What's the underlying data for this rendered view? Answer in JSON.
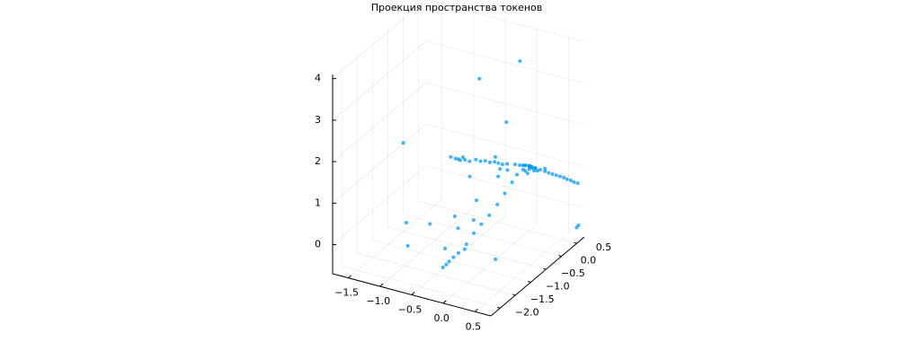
{
  "chart_data": {
    "type": "scatter",
    "title": "Проекция пространства токенов",
    "xlabel": "",
    "ylabel": "",
    "zlabel": "",
    "grid": true,
    "legend": "none",
    "marker_color": "#009af9",
    "x_ticks": [
      -1.5,
      -1.0,
      -0.5,
      0.0,
      0.5
    ],
    "x_tick_labels": [
      "−1.5",
      "−1.0",
      "−0.5",
      "0.0",
      "0.5"
    ],
    "y_ticks": [
      -2.0,
      -1.5,
      -1.0,
      -0.5,
      0.0,
      0.5
    ],
    "y_tick_labels": [
      "−2.0",
      "−1.5",
      "−1.0",
      "−0.5",
      "0.0",
      "0.5"
    ],
    "z_ticks": [
      0,
      1,
      2,
      3,
      4
    ],
    "z_tick_labels": [
      "0",
      "1",
      "2",
      "3",
      "4"
    ],
    "xlim": [
      -1.75,
      0.75
    ],
    "ylim": [
      -2.3,
      0.75
    ],
    "zlim": [
      -0.7,
      4.1
    ],
    "points": [
      [
        0.28,
        -0.38,
        4.05
      ],
      [
        -0.4,
        -0.3,
        3.3
      ],
      [
        0.1,
        -0.45,
        2.55
      ],
      [
        -0.1,
        -0.4,
        1.6
      ],
      [
        -0.05,
        -0.35,
        1.3
      ],
      [
        -1.7,
        -0.1,
        1.1
      ],
      [
        0.7,
        0.6,
        -0.4
      ],
      [
        0.72,
        0.62,
        -0.35
      ],
      [
        0.0,
        -0.6,
        -0.7
      ],
      [
        -0.95,
        -1.5,
        -0.2
      ],
      [
        -0.7,
        -0.8,
        -0.6
      ],
      [
        -1.12,
        -1.2,
        0.1
      ],
      [
        -0.55,
        -1.6,
        0.55
      ],
      [
        -0.9,
        -0.2,
        1.15
      ],
      [
        -0.85,
        -0.15,
        1.1
      ],
      [
        -0.8,
        -0.1,
        1.05
      ],
      [
        -0.75,
        -0.05,
        1.05
      ],
      [
        -0.7,
        0.0,
        1.0
      ],
      [
        -0.78,
        -0.05,
        1.1
      ],
      [
        -0.82,
        -0.12,
        1.08
      ],
      [
        -0.65,
        0.1,
        1.0
      ],
      [
        -0.6,
        0.15,
        0.95
      ],
      [
        -0.55,
        0.2,
        0.95
      ],
      [
        -0.5,
        0.25,
        0.9
      ],
      [
        -0.45,
        0.3,
        0.9
      ],
      [
        -0.4,
        0.32,
        0.88
      ],
      [
        -0.35,
        0.35,
        0.85
      ],
      [
        -0.3,
        0.4,
        0.85
      ],
      [
        -0.2,
        0.45,
        0.85
      ],
      [
        -0.15,
        0.5,
        0.82
      ],
      [
        -0.1,
        0.55,
        0.8
      ],
      [
        0.0,
        0.5,
        0.85
      ],
      [
        0.05,
        0.45,
        0.9
      ],
      [
        0.1,
        0.5,
        0.85
      ],
      [
        0.15,
        0.55,
        0.8
      ],
      [
        0.2,
        0.6,
        0.75
      ],
      [
        0.25,
        0.62,
        0.72
      ],
      [
        0.3,
        0.64,
        0.7
      ],
      [
        0.35,
        0.66,
        0.68
      ],
      [
        0.4,
        0.68,
        0.66
      ],
      [
        0.45,
        0.7,
        0.64
      ],
      [
        0.5,
        0.7,
        0.62
      ],
      [
        0.55,
        0.72,
        0.6
      ],
      [
        0.6,
        0.72,
        0.58
      ],
      [
        0.65,
        0.74,
        0.56
      ],
      [
        0.05,
        0.4,
        0.95
      ],
      [
        0.08,
        0.42,
        0.92
      ],
      [
        0.12,
        0.44,
        0.9
      ],
      [
        0.02,
        0.35,
        0.98
      ],
      [
        0.07,
        0.38,
        0.96
      ],
      [
        0.0,
        0.3,
        0.9
      ],
      [
        0.1,
        0.3,
        0.95
      ],
      [
        0.06,
        0.25,
        0.92
      ],
      [
        0.03,
        0.45,
        0.88
      ],
      [
        0.15,
        0.35,
        0.9
      ],
      [
        0.18,
        0.4,
        0.88
      ],
      [
        -0.05,
        0.4,
        0.92
      ],
      [
        0.0,
        0.1,
        0.9
      ],
      [
        0.02,
        -0.1,
        0.85
      ],
      [
        0.0,
        -0.3,
        0.7
      ],
      [
        -0.02,
        -0.5,
        0.55
      ],
      [
        -0.05,
        -0.7,
        0.4
      ],
      [
        -0.08,
        -0.9,
        0.3
      ],
      [
        -0.1,
        -1.1,
        0.2
      ],
      [
        -0.12,
        -1.3,
        0.05
      ],
      [
        -0.15,
        -1.5,
        -0.05
      ],
      [
        -0.18,
        -1.6,
        -0.1
      ],
      [
        -0.2,
        -1.7,
        -0.15
      ],
      [
        -0.22,
        -1.75,
        -0.2
      ],
      [
        -0.1,
        -1.4,
        0.0
      ],
      [
        -0.25,
        -1.8,
        -0.25
      ],
      [
        -0.3,
        -1.2,
        0.3
      ],
      [
        -0.45,
        -1.0,
        0.4
      ],
      [
        -0.2,
        -0.9,
        0.35
      ],
      [
        -0.3,
        -0.6,
        0.6
      ],
      [
        0.15,
        0.3,
        1.0
      ],
      [
        0.25,
        0.5,
        0.9
      ],
      [
        -0.2,
        -0.1,
        0.9
      ],
      [
        -0.15,
        0.1,
        0.95
      ],
      [
        0.12,
        0.2,
        0.92
      ],
      [
        -0.6,
        -0.2,
        0.8
      ]
    ]
  }
}
